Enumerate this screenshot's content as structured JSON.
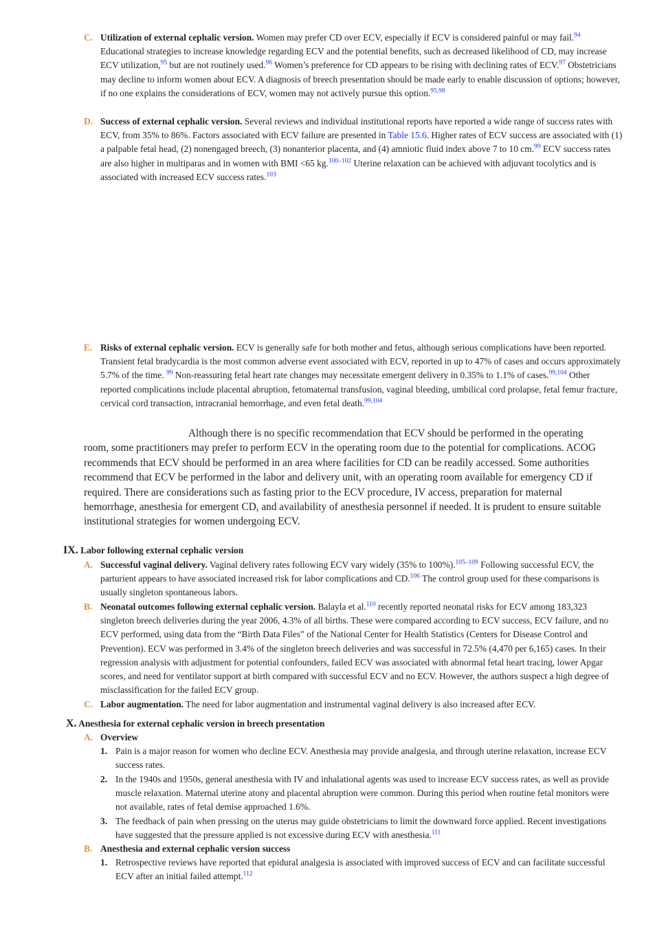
{
  "items": {
    "c1": {
      "letter": "C.",
      "title": "Utilization of external cephalic version.",
      "t1": " Women may prefer CD over ECV, especially if ECV is considered painful or may fail.",
      "s1": "94",
      "t2": " Educational strategies to increase knowledge regarding ECV and the potential benefits, such as decreased likelihood of CD, may increase ECV utilization,",
      "s2": "95",
      "t3": " but are not routinely used.",
      "s3": "96",
      "t4": " Women’s preference for CD appears to be rising with declining rates of ECV.",
      "s4": "97",
      "t5": " Obstetricians may decline to inform women about ECV. A diagnosis of breech presentation should be made early to enable discussion of options; however, if no one explains the considerations of ECV, women may not actively pursue this option.",
      "s5": "95,98"
    },
    "d1": {
      "letter": "D.",
      "title": "Success of external cephalic version.",
      "t1": " Several reviews and individual institutional reports have reported a wide range of success rates with ECV, from 35% to 86%. Factors associated with ECV failure are presented in ",
      "link": "Table 15.6",
      "t2": ". Higher rates of ECV success are associated with (1) a palpable fetal head, (2) nonengaged breech, (3) nonanterior placenta, and (4) amniotic fluid index above 7 to 10 cm.",
      "s1": "99",
      "t3": " ECV success rates are also higher in multiparas and in women with BMI <65 kg.",
      "s2": "100–102",
      "t4": " Uterine relaxation can be achieved with adjuvant tocolytics and is associated with increased ECV success rates.",
      "s3": "103"
    },
    "e1": {
      "letter": "E.",
      "title": "Risks of external cephalic version.",
      "t1": " ECV is generally safe for both mother and fetus, although serious complications have been reported. Transient fetal bradycardia is the most common adverse event associated with ECV, reported in up to 47% of cases and occurs approximately 5.7% of the time. ",
      "s1": "99",
      "t2": " Non-reassuring fetal heart rate changes may necessitate emergent delivery in 0.35% to 1.1% of cases.",
      "s2": "99,104",
      "t3": " Other reported complications include placental abruption, fetomaternal transfusion, vaginal bleeding, umbilical cord prolapse, fetal femur fracture, cervical cord transaction, intracranial hemorrhage, and even fetal death.",
      "s3": "99,104"
    }
  },
  "paragraph": "Although there is no specific recommendation that ECV should be performed in the operating room, some practitioners may prefer to perform ECV in the operating room due to the potential for complications. ACOG recommends that ECV should be performed in an area where facilities for CD can be readily accessed. Some authorities recommend that ECV be performed in the labor and delivery unit, with an operating room available for emergency CD if required. There are considerations such as fasting prior to the ECV procedure, IV access, preparation for maternal hemorrhage, anesthesia for emergent CD, and availability of anesthesia personnel if needed. It is prudent to ensure suitable institutional strategies for women undergoing ECV.",
  "section9": {
    "roman": "IX.",
    "title": "Labor following external cephalic version",
    "a": {
      "letter": "A.",
      "title": "Successful vaginal delivery.",
      "t1": " Vaginal delivery rates following ECV vary widely (35% to 100%).",
      "s1": "105–109",
      "t2": " Following successful ECV, the parturient appears to have associated increased risk for labor complications and CD.",
      "s2": "106",
      "t3": " The control group used for these comparisons is usually singleton spontaneous labors."
    },
    "b": {
      "letter": "B.",
      "title": "Neonatal outcomes following external cephalic version.",
      "t1": " Balayla et al.",
      "s1": "110",
      "t2": " recently reported neonatal risks for ECV among 183,323 singleton breech deliveries during the year 2006, 4.3% of all births. These were compared according to ECV success, ECV failure, and no ECV performed, using data from the “Birth Data Files” of the National Center for Health Statistics (Centers for Disease Control and Prevention). ECV was performed in 3.4% of the singleton breech deliveries and was successful in 72.5% (4,470 per 6,165) cases. In their regression analysis with adjustment for potential confounders, failed ECV was associated with abnormal fetal heart tracing, lower Apgar scores, and need for ventilator support at birth compared with successful ECV and no ECV. However, the authors suspect a high degree of misclassification for the failed ECV group."
    },
    "c": {
      "letter": "C.",
      "title": "Labor augmentation.",
      "t1": " The need for labor augmentation and instrumental vaginal delivery is also increased after ECV."
    }
  },
  "section10": {
    "roman": "X.",
    "title": "Anesthesia for external cephalic version in breech presentation",
    "a": {
      "letter": "A.",
      "title": "Overview",
      "n1": {
        "num": "1.",
        "text": "Pain is a major reason for women who decline ECV. Anesthesia may provide analgesia, and through uterine relaxation, increase ECV success rates."
      },
      "n2": {
        "num": "2.",
        "text": "In the 1940s and 1950s, general anesthesia with IV and inhalational agents was used to increase ECV success rates, as well as provide muscle relaxation. Maternal uterine atony and placental abruption were common. During this period when routine fetal monitors were not available, rates of fetal demise approached 1.6%."
      },
      "n3": {
        "num": "3.",
        "text": "The feedback of pain when pressing on the uterus may guide obstetricians to limit the downward force applied. Recent investigations have suggested that the pressure applied is not excessive during ECV with anesthesia.",
        "sup": "111"
      }
    },
    "b": {
      "letter": "B.",
      "title": "Anesthesia and external cephalic version success",
      "n1": {
        "num": "1.",
        "text": "Retrospective reviews have reported that epidural analgesia is associated with improved success of ECV and can facilitate successful ECV after an initial failed attempt.",
        "sup": "112"
      }
    }
  }
}
